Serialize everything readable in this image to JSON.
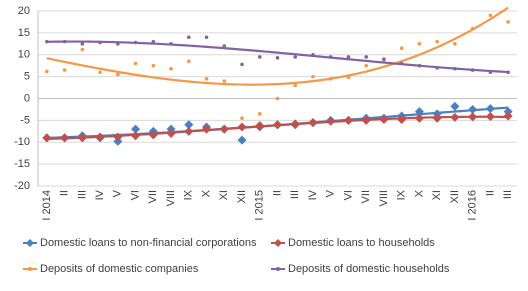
{
  "chart_data": {
    "type": "scatter",
    "categories": [
      "I 2014",
      "II",
      "III",
      "IV",
      "V",
      "VI",
      "VII",
      "VIII",
      "IX",
      "X",
      "XI",
      "XII",
      "I 2015",
      "II",
      "III",
      "IV",
      "V",
      "VI",
      "VII",
      "VIII",
      "IX",
      "X",
      "XI",
      "XII",
      "I 2016",
      "II",
      "III"
    ],
    "series": [
      {
        "name": "Domestic loans to non-financial corporations",
        "color": "#4a7fc1",
        "marker": "diamond",
        "values": [
          -9,
          -9,
          -8.5,
          -9,
          -9.8,
          -7,
          -7.5,
          -7,
          -6,
          -6.5,
          -7,
          -9.5,
          -6.5,
          -6,
          -6,
          -5.5,
          -5,
          -5,
          -4.5,
          -4.5,
          -4,
          -3,
          -3.5,
          -1.8,
          -2.5,
          -2.3,
          -3
        ]
      },
      {
        "name": "Domestic loans to households",
        "color": "#c0504d",
        "marker": "diamond",
        "values": [
          -9,
          -9,
          -9,
          -8.8,
          -8.8,
          -8.5,
          -8.3,
          -8,
          -7.5,
          -7,
          -7,
          -6.5,
          -6.2,
          -6,
          -5.8,
          -5.5,
          -5.2,
          -5,
          -5,
          -4.8,
          -4.8,
          -4.5,
          -4.5,
          -4.3,
          -4.2,
          -4.1,
          -4
        ]
      },
      {
        "name": "Deposits of domestic companies",
        "color": "#f79646",
        "marker": "dot",
        "values": [
          6.2,
          6.5,
          11.2,
          6,
          5.5,
          8,
          7.5,
          6.8,
          8.5,
          4.5,
          4,
          -4.5,
          -3.5,
          0,
          3,
          5,
          4.5,
          4.8,
          7.5,
          8.8,
          11.5,
          12.5,
          13,
          12.5,
          16,
          19,
          17.5
        ]
      },
      {
        "name": "Deposits of domestic households",
        "color": "#8064a2",
        "marker": "dot",
        "values": [
          13,
          13,
          12.5,
          12.8,
          12.5,
          12.8,
          13,
          12.5,
          14,
          14,
          12,
          7.8,
          9.5,
          9.3,
          9.5,
          10,
          9.5,
          9.5,
          9.5,
          9,
          8,
          7.5,
          7,
          6.8,
          6.5,
          6,
          6
        ]
      }
    ],
    "trendline": true,
    "ylim": [
      -20,
      20
    ],
    "yticks": [
      -20,
      -15,
      -10,
      -5,
      0,
      5,
      10,
      15,
      20
    ],
    "grid": true
  }
}
